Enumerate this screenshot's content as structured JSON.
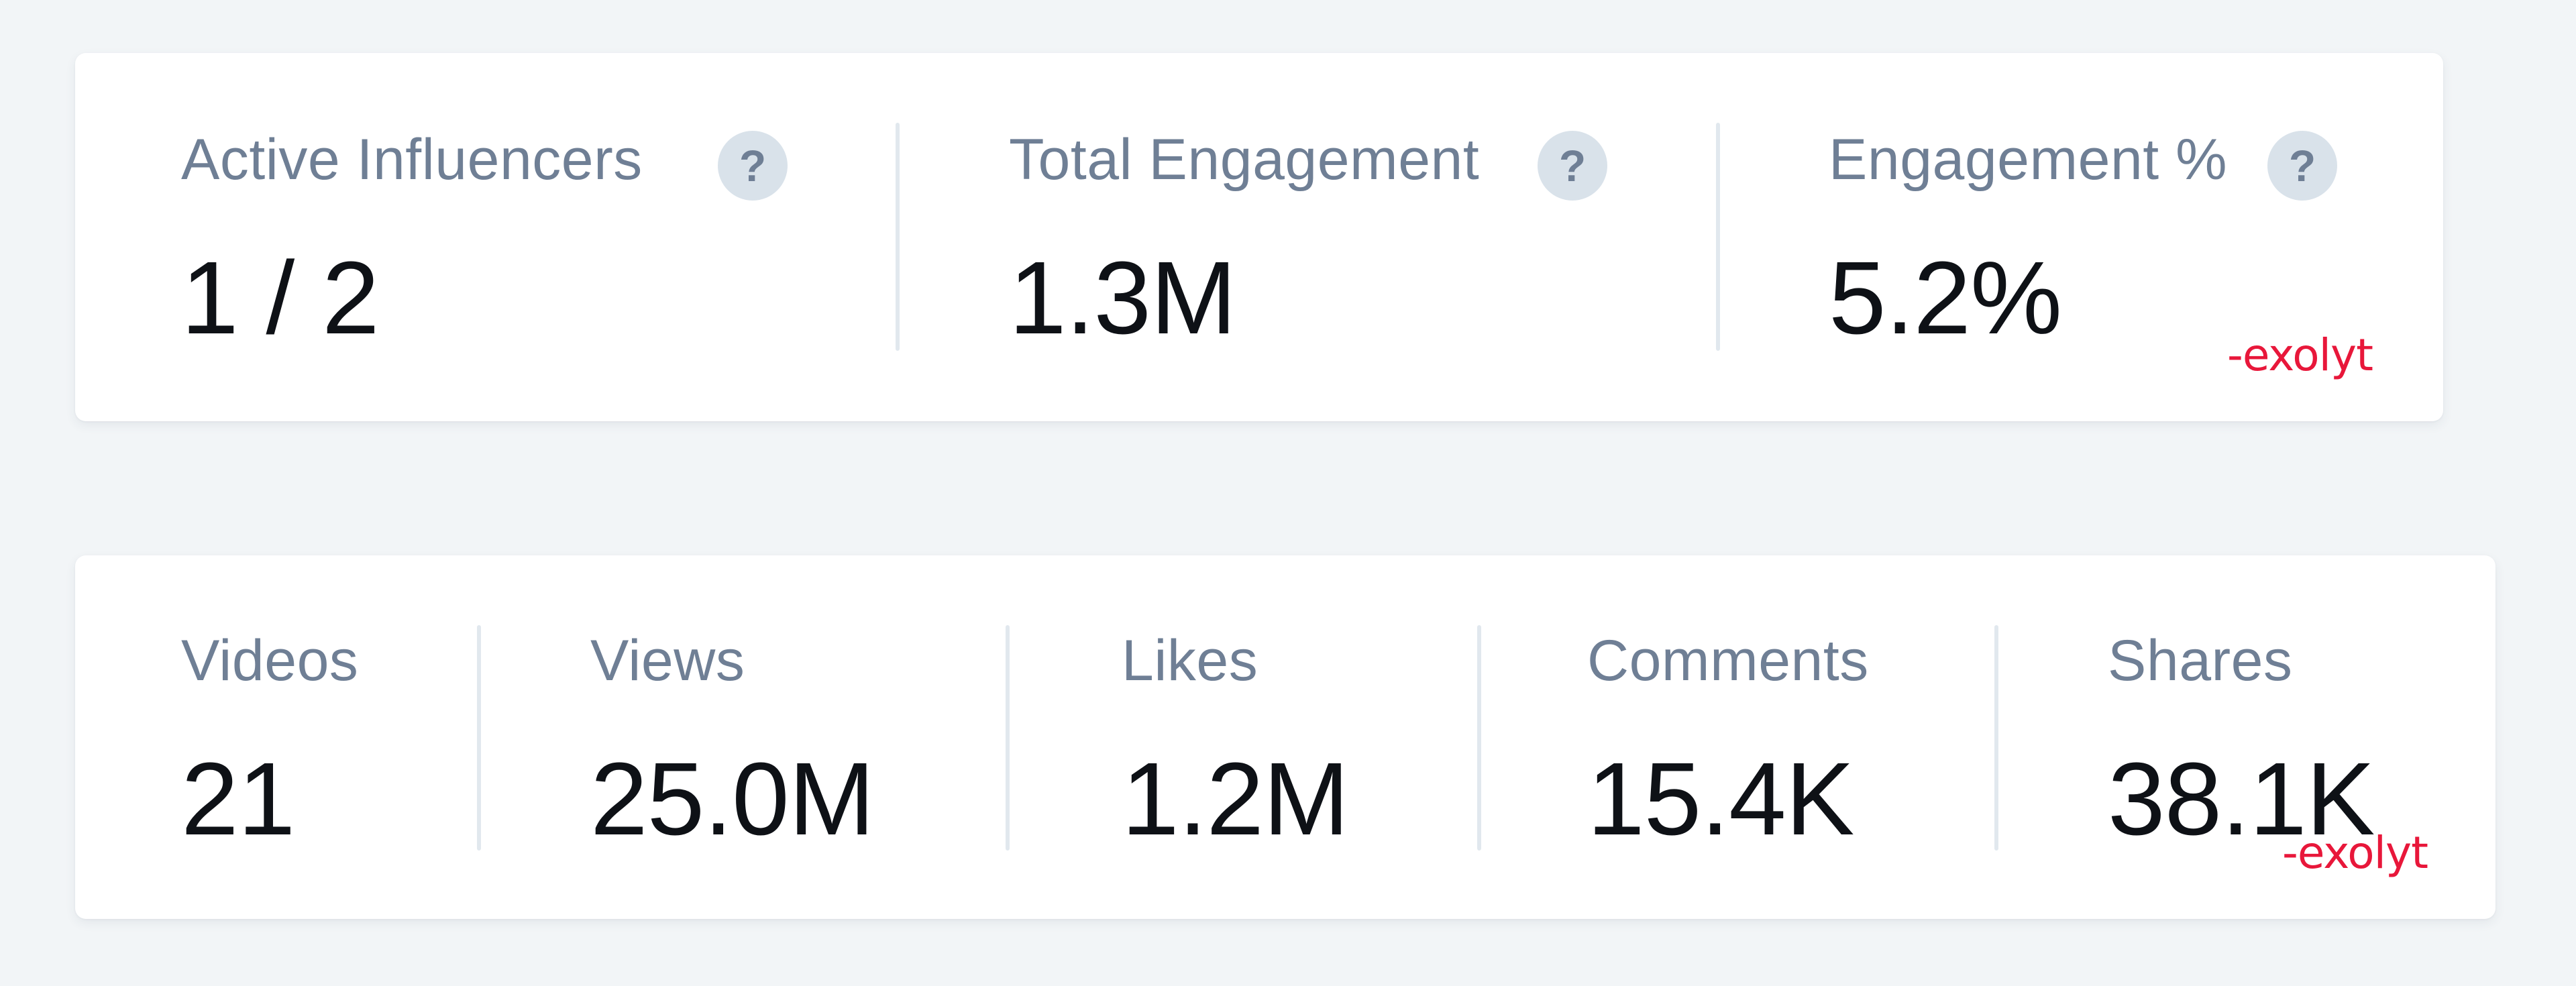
{
  "summary": {
    "metrics": [
      {
        "label": "Active Influencers",
        "value": "1 / 2",
        "help": "?"
      },
      {
        "label": "Total Engagement",
        "value": "1.3M",
        "help": "?"
      },
      {
        "label": "Engagement %",
        "value": "5.2%",
        "help": "?"
      }
    ],
    "brand": "-exolyt",
    "brand_color": "#e8173a"
  },
  "stats": {
    "metrics": [
      {
        "label": "Videos",
        "value": "21"
      },
      {
        "label": "Views",
        "value": "25.0M"
      },
      {
        "label": "Likes",
        "value": "1.2M"
      },
      {
        "label": "Comments",
        "value": "15.4K"
      },
      {
        "label": "Shares",
        "value": "38.1K"
      }
    ],
    "brand": "-exolyt"
  },
  "icons": {
    "help": "help-circle-icon"
  }
}
